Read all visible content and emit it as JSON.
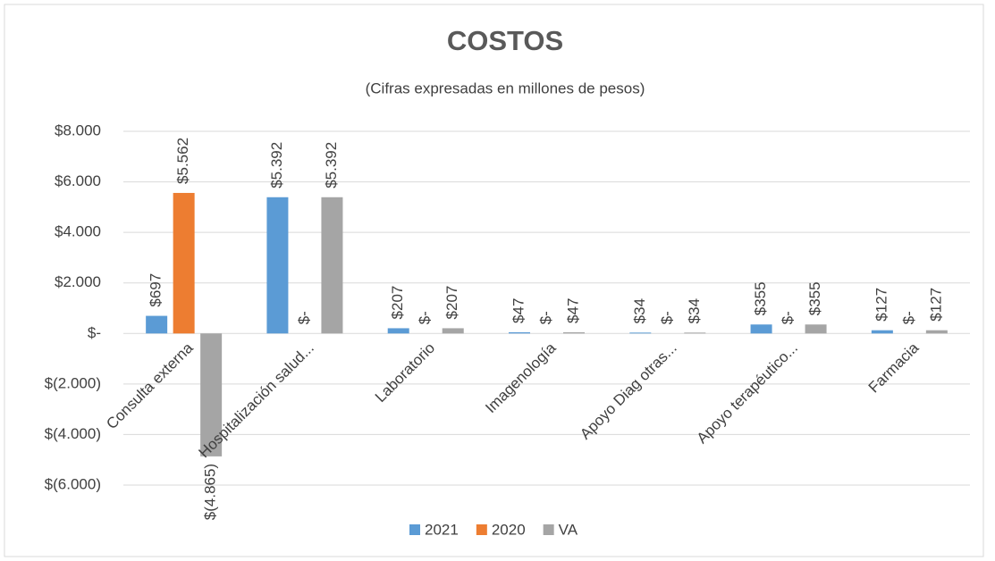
{
  "chart_data": {
    "type": "bar",
    "title": "COSTOS",
    "subtitle": "(Cifras expresadas en millones de pesos)",
    "categories": [
      "Consulta externa",
      "Hospitalización salud...",
      "Laboratorio",
      "Imagenología",
      "Apoyo Diag otras...",
      "Apoyo terapéutico...",
      "Farmacia"
    ],
    "series": [
      {
        "name": "2021",
        "color": "#5b9bd5",
        "values": [
          697,
          5392,
          207,
          47,
          34,
          355,
          127
        ],
        "value_labels": [
          "$697",
          "$5.392",
          "$207",
          "$47",
          "$34",
          "$355",
          "$127"
        ]
      },
      {
        "name": "2020",
        "color": "#ed7d31",
        "values": [
          5562,
          0,
          0,
          0,
          0,
          0,
          0
        ],
        "value_labels": [
          "$5.562",
          "$-",
          "$-",
          "$-",
          "$-",
          "$-",
          "$-"
        ]
      },
      {
        "name": "VA",
        "color": "#a5a5a5",
        "values": [
          -4865,
          5392,
          207,
          47,
          34,
          355,
          127
        ],
        "value_labels": [
          "$(4.865)",
          "$5.392",
          "$207",
          "$47",
          "$34",
          "$355",
          "$127"
        ]
      }
    ],
    "ylim": [
      -6000,
      8000
    ],
    "yticks": [
      {
        "value": -6000,
        "label": "$(6.000)"
      },
      {
        "value": -4000,
        "label": "$(4.000)"
      },
      {
        "value": -2000,
        "label": "$(2.000)"
      },
      {
        "value": 0,
        "label": "$-"
      },
      {
        "value": 2000,
        "label": "$2.000"
      },
      {
        "value": 4000,
        "label": "$4.000"
      },
      {
        "value": 6000,
        "label": "$6.000"
      },
      {
        "value": 8000,
        "label": "$8.000"
      }
    ],
    "grid": true,
    "legend": "bottom"
  }
}
